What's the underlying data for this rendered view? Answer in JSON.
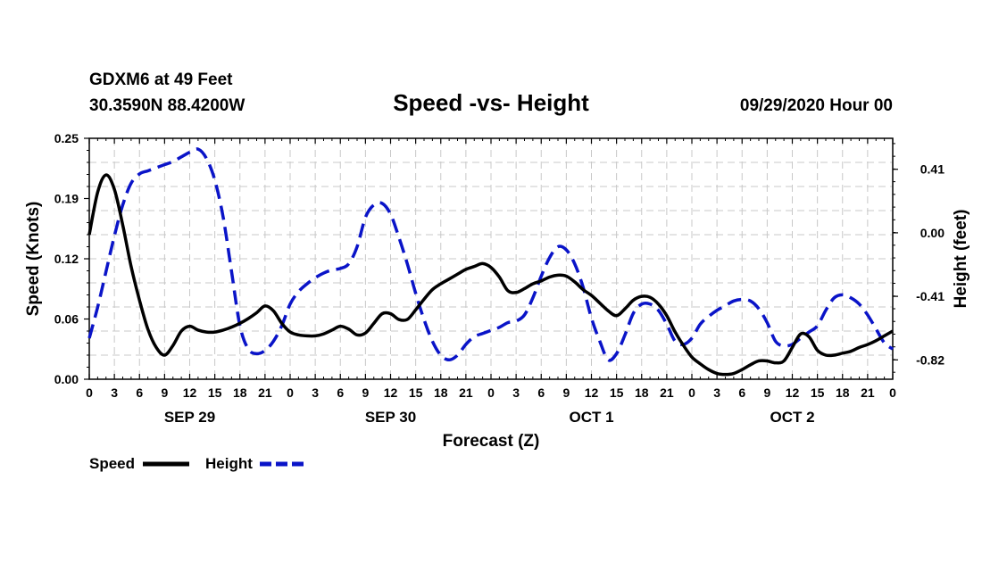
{
  "header": {
    "station": "GDXM6 at 49 Feet",
    "coords": "30.3590N 88.4200W",
    "datetime": "09/29/2020 Hour 00"
  },
  "colors": {
    "speed": "#000000",
    "height": "#0a14c8"
  },
  "chart_data": {
    "type": "line",
    "title": "Speed -vs- Height",
    "xlabel": "Forecast (Z)",
    "ylabel": "Speed (Knots)",
    "y2label": "Height (feet)",
    "xlim": [
      0,
      96
    ],
    "ylim": [
      0,
      0.25
    ],
    "y2lim": [
      -0.945,
      0.61
    ],
    "x_tick_labels": [
      "0",
      "3",
      "6",
      "9",
      "12",
      "15",
      "18",
      "21",
      "0",
      "3",
      "6",
      "9",
      "12",
      "15",
      "18",
      "21",
      "0",
      "3",
      "6",
      "9",
      "12",
      "15",
      "18",
      "21",
      "0",
      "3",
      "6",
      "9",
      "12",
      "15",
      "18",
      "21",
      "0"
    ],
    "date_labels": [
      {
        "label": "SEP 29",
        "x": 12
      },
      {
        "label": "SEP 30",
        "x": 36
      },
      {
        "label": "OCT 1",
        "x": 60
      },
      {
        "label": "OCT 2",
        "x": 84
      }
    ],
    "y_ticks": [
      "0.00",
      "0.06",
      "0.12",
      "0.19",
      "0.25"
    ],
    "y2_ticks": [
      "-0.82",
      "-0.41",
      "0.00",
      "0.41"
    ],
    "legend": [
      {
        "name": "Speed",
        "style": "solid"
      },
      {
        "name": "Height",
        "style": "dashed"
      }
    ],
    "series": [
      {
        "name": "Speed",
        "axis": "left",
        "x": [
          0,
          1,
          2,
          3,
          4,
          5,
          6,
          7,
          8,
          9,
          10,
          11,
          12,
          13,
          14,
          15,
          16,
          17,
          18,
          19,
          20,
          21,
          22,
          23,
          24,
          25,
          26,
          27,
          28,
          29,
          30,
          31,
          32,
          33,
          34,
          35,
          36,
          37,
          38,
          39,
          40,
          41,
          42,
          43,
          44,
          45,
          46,
          47,
          48,
          49,
          50,
          51,
          52,
          53,
          54,
          55,
          56,
          57,
          58,
          59,
          60,
          61,
          62,
          63,
          64,
          65,
          66,
          67,
          68,
          69,
          70,
          71,
          72,
          73,
          74,
          75,
          76,
          77,
          78,
          79,
          80,
          81,
          82,
          83,
          84,
          85,
          86,
          87,
          88,
          89,
          90,
          91,
          92,
          93,
          94,
          95,
          96
        ],
        "values": [
          0.15,
          0.194,
          0.212,
          0.197,
          0.16,
          0.117,
          0.082,
          0.052,
          0.033,
          0.025,
          0.035,
          0.05,
          0.055,
          0.051,
          0.049,
          0.049,
          0.051,
          0.054,
          0.058,
          0.063,
          0.069,
          0.076,
          0.071,
          0.058,
          0.049,
          0.046,
          0.045,
          0.045,
          0.047,
          0.051,
          0.055,
          0.052,
          0.046,
          0.048,
          0.058,
          0.068,
          0.068,
          0.062,
          0.062,
          0.072,
          0.083,
          0.093,
          0.099,
          0.104,
          0.109,
          0.114,
          0.117,
          0.12,
          0.116,
          0.106,
          0.092,
          0.09,
          0.094,
          0.099,
          0.102,
          0.106,
          0.108,
          0.107,
          0.101,
          0.093,
          0.087,
          0.079,
          0.071,
          0.066,
          0.073,
          0.082,
          0.086,
          0.085,
          0.078,
          0.066,
          0.049,
          0.035,
          0.023,
          0.016,
          0.01,
          0.006,
          0.005,
          0.006,
          0.01,
          0.015,
          0.019,
          0.019,
          0.017,
          0.019,
          0.033,
          0.047,
          0.044,
          0.03,
          0.025,
          0.025,
          0.027,
          0.029,
          0.033,
          0.036,
          0.04,
          0.045,
          0.05
        ]
      },
      {
        "name": "Height",
        "axis": "right",
        "x": [
          0,
          1,
          2,
          3,
          4,
          5,
          6,
          7,
          8,
          9,
          10,
          11,
          12,
          13,
          14,
          15,
          16,
          17,
          18,
          19,
          20,
          21,
          22,
          23,
          24,
          25,
          26,
          27,
          28,
          29,
          30,
          31,
          32,
          33,
          34,
          35,
          36,
          37,
          38,
          39,
          40,
          41,
          42,
          43,
          44,
          45,
          46,
          47,
          48,
          49,
          50,
          51,
          52,
          53,
          54,
          55,
          56,
          57,
          58,
          59,
          60,
          61,
          62,
          63,
          64,
          65,
          66,
          67,
          68,
          69,
          70,
          71,
          72,
          73,
          74,
          75,
          76,
          77,
          78,
          79,
          80,
          81,
          82,
          83,
          84,
          85,
          86,
          87,
          88,
          89,
          90,
          91,
          92,
          93,
          94,
          95,
          96
        ],
        "values": [
          -0.68,
          -0.48,
          -0.25,
          -0.02,
          0.18,
          0.32,
          0.38,
          0.4,
          0.42,
          0.44,
          0.46,
          0.49,
          0.52,
          0.54,
          0.48,
          0.34,
          0.1,
          -0.25,
          -0.6,
          -0.75,
          -0.78,
          -0.76,
          -0.7,
          -0.6,
          -0.46,
          -0.38,
          -0.33,
          -0.29,
          -0.26,
          -0.24,
          -0.23,
          -0.2,
          -0.09,
          0.1,
          0.18,
          0.19,
          0.12,
          -0.03,
          -0.2,
          -0.39,
          -0.56,
          -0.7,
          -0.79,
          -0.82,
          -0.79,
          -0.72,
          -0.67,
          -0.65,
          -0.63,
          -0.61,
          -0.58,
          -0.57,
          -0.53,
          -0.42,
          -0.28,
          -0.16,
          -0.09,
          -0.11,
          -0.2,
          -0.35,
          -0.55,
          -0.7,
          -0.82,
          -0.78,
          -0.66,
          -0.52,
          -0.46,
          -0.46,
          -0.5,
          -0.59,
          -0.7,
          -0.72,
          -0.68,
          -0.59,
          -0.54,
          -0.5,
          -0.47,
          -0.44,
          -0.43,
          -0.44,
          -0.49,
          -0.58,
          -0.7,
          -0.73,
          -0.72,
          -0.68,
          -0.64,
          -0.6,
          -0.5,
          -0.42,
          -0.4,
          -0.42,
          -0.46,
          -0.53,
          -0.62,
          -0.71,
          -0.75
        ]
      }
    ]
  }
}
